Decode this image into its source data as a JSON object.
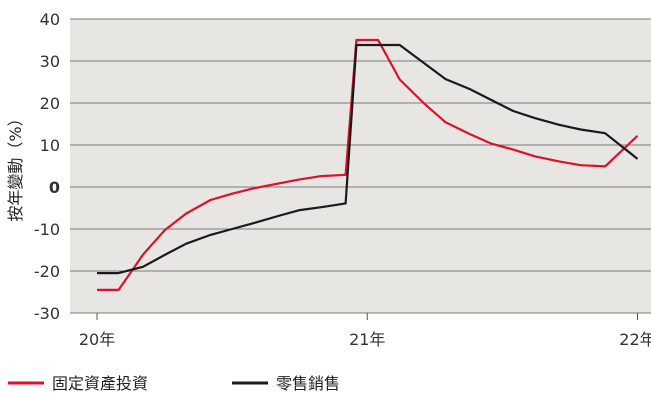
{
  "chart_data": {
    "type": "line",
    "ylabel": "按年變動（%）",
    "ylim": [
      -30,
      40
    ],
    "y_ticks": [
      "40",
      "30",
      "20",
      "10",
      "0",
      "-10",
      "-20",
      "-30"
    ],
    "y_tick_values": [
      40,
      30,
      20,
      10,
      0,
      -10,
      -20,
      -30
    ],
    "x_range": [
      2019.9,
      2022.05
    ],
    "x_ticks": [
      {
        "label": "20年",
        "value": 2020.0
      },
      {
        "label": "21年",
        "value": 2021.0
      },
      {
        "label": "22年",
        "value": 2022.0
      }
    ],
    "background": "#e8e6e2",
    "series": [
      {
        "name": "固定資產投資",
        "color": "#e0102a",
        "points": [
          [
            2020.0,
            -24.5
          ],
          [
            2020.08,
            -24.5
          ],
          [
            2020.17,
            -16.1
          ],
          [
            2020.25,
            -10.3
          ],
          [
            2020.33,
            -6.3
          ],
          [
            2020.42,
            -3.1
          ],
          [
            2020.5,
            -1.6
          ],
          [
            2020.58,
            -0.3
          ],
          [
            2020.67,
            0.8
          ],
          [
            2020.75,
            1.8
          ],
          [
            2020.83,
            2.6
          ],
          [
            2020.92,
            2.9
          ],
          [
            2020.96,
            35.0
          ],
          [
            2021.04,
            35.0
          ],
          [
            2021.12,
            25.6
          ],
          [
            2021.21,
            19.9
          ],
          [
            2021.29,
            15.4
          ],
          [
            2021.38,
            12.6
          ],
          [
            2021.46,
            10.3
          ],
          [
            2021.54,
            8.9
          ],
          [
            2021.62,
            7.3
          ],
          [
            2021.71,
            6.1
          ],
          [
            2021.79,
            5.2
          ],
          [
            2021.88,
            4.9
          ],
          [
            2022.0,
            12.2
          ]
        ]
      },
      {
        "name": "零售銷售",
        "color": "#1a1a1a",
        "points": [
          [
            2020.0,
            -20.5
          ],
          [
            2020.08,
            -20.5
          ],
          [
            2020.17,
            -19.0
          ],
          [
            2020.25,
            -16.2
          ],
          [
            2020.33,
            -13.5
          ],
          [
            2020.42,
            -11.4
          ],
          [
            2020.5,
            -10.0
          ],
          [
            2020.58,
            -8.6
          ],
          [
            2020.67,
            -6.9
          ],
          [
            2020.75,
            -5.5
          ],
          [
            2020.83,
            -4.8
          ],
          [
            2020.92,
            -3.9
          ],
          [
            2020.96,
            33.8
          ],
          [
            2021.04,
            33.8
          ],
          [
            2021.12,
            33.8
          ],
          [
            2021.29,
            25.7
          ],
          [
            2021.38,
            23.3
          ],
          [
            2021.46,
            20.7
          ],
          [
            2021.54,
            18.1
          ],
          [
            2021.62,
            16.4
          ],
          [
            2021.71,
            14.8
          ],
          [
            2021.79,
            13.7
          ],
          [
            2021.88,
            12.8
          ],
          [
            2022.0,
            6.7
          ]
        ]
      }
    ],
    "legend": [
      "固定資產投資",
      "零售銷售"
    ],
    "legend_position": "bottom-left"
  }
}
